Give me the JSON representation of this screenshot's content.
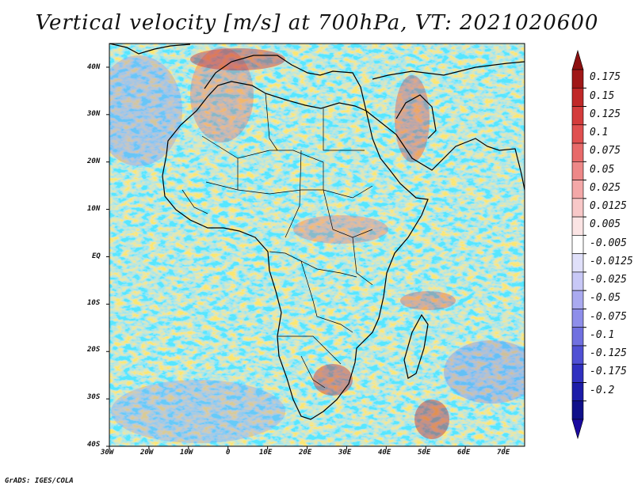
{
  "title": "Vertical velocity [m/s] at 700hPa, VT: 2021020600",
  "credit": "GrADS: IGES/COLA",
  "map": {
    "lon_range": [
      -30,
      75
    ],
    "lat_range": [
      -40,
      45
    ],
    "lat_labels": [
      "40N",
      "30N",
      "20N",
      "10N",
      "EQ",
      "10S",
      "20S",
      "30S",
      "40S"
    ],
    "lat_values": [
      40,
      30,
      20,
      10,
      0,
      -10,
      -20,
      -30,
      -40
    ],
    "lon_labels": [
      "30W",
      "20W",
      "10W",
      "0",
      "10E",
      "20E",
      "30E",
      "40E",
      "50E",
      "60E",
      "70E"
    ],
    "lon_values": [
      -30,
      -20,
      -10,
      0,
      10,
      20,
      30,
      40,
      50,
      60,
      70
    ]
  },
  "colorbar": {
    "labels": [
      "0.175",
      "0.15",
      "0.125",
      "0.1",
      "0.075",
      "0.05",
      "0.025",
      "0.0125",
      "0.005",
      "-0.005",
      "-0.0125",
      "-0.025",
      "-0.05",
      "-0.075",
      "-0.1",
      "-0.125",
      "-0.175",
      "-0.2"
    ],
    "colors": [
      "#a01818",
      "#c02828",
      "#d43c3c",
      "#e05050",
      "#e86a6a",
      "#ee8888",
      "#f4a8a8",
      "#f8c8c8",
      "#fbe4e4",
      "#ffffff",
      "#e0e0fa",
      "#c8c8f6",
      "#aaaaf0",
      "#8e8eea",
      "#7070e0",
      "#5050d4",
      "#3030c0",
      "#1c1ca8",
      "#10108a"
    ],
    "top_arrow_color": "#8c1010",
    "bottom_arrow_color": "#1a0aa0"
  }
}
